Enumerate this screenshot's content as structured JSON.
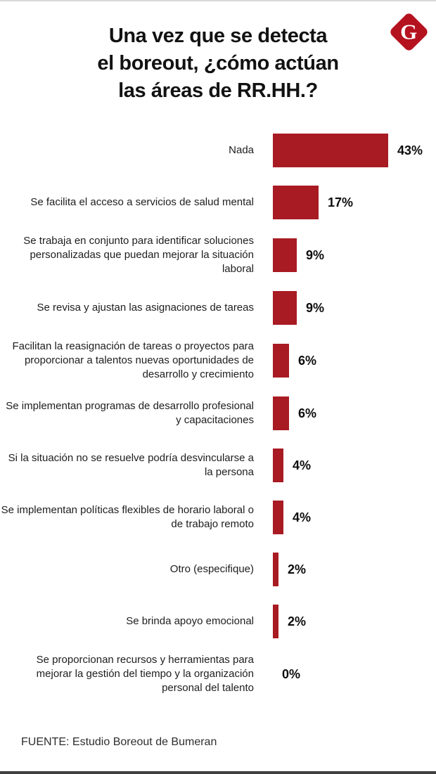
{
  "page": {
    "title_lines": [
      "Una vez que se detecta",
      "el boreout, ¿cómo actúan",
      "las áreas de RR.HH.?"
    ],
    "logo_letter": "G",
    "source": "FUENTE: Estudio Boreout de Bumeran",
    "colors": {
      "bar": "#a81b23",
      "logo": "#b5121f",
      "title": "#121212"
    }
  },
  "chart_data": {
    "type": "bar",
    "orientation": "horizontal",
    "title": "Una vez que se detecta el boreout, ¿cómo actúan las áreas de RR.HH.?",
    "xlabel": "",
    "ylabel": "",
    "unit": "%",
    "xlim": [
      0,
      45
    ],
    "grid": false,
    "legend": "none",
    "categories": [
      "Nada",
      "Se facilita el acceso a servicios de salud mental",
      "Se trabaja en conjunto para identificar soluciones personalizadas que puedan mejorar la situación laboral",
      "Se revisa y ajustan las asignaciones de tareas",
      "Facilitan la reasignación de tareas o proyectos para proporcionar a talentos nuevas oportunidades de desarrollo y crecimiento",
      "Se implementan programas de desarrollo profesional y capacitaciones",
      "Si la situación no se resuelve podría desvincularse a la persona",
      "Se implementan políticas flexibles de horario laboral o de trabajo remoto",
      "Otro (especifique)",
      "Se brinda apoyo emocional",
      "Se proporcionan recursos y herramientas para mejorar la gestión del tiempo y la organización personal del talento"
    ],
    "values": [
      43,
      17,
      9,
      9,
      6,
      6,
      4,
      4,
      2,
      2,
      0
    ],
    "value_labels": [
      "43%",
      "17%",
      "9%",
      "9%",
      "6%",
      "6%",
      "4%",
      "4%",
      "2%",
      "2%",
      "0%"
    ]
  }
}
